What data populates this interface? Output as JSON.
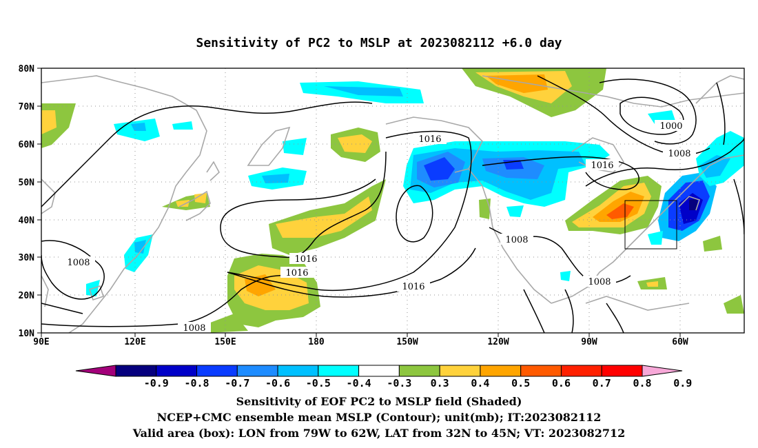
{
  "title": "Sensitivity of PC2 to MSLP at 2023082112 +6.0 day",
  "map": {
    "lat_labels": [
      "80N",
      "70N",
      "60N",
      "50N",
      "40N",
      "30N",
      "20N",
      "10N"
    ],
    "lon_labels": [
      "90E",
      "120E",
      "150E",
      "180",
      "150W",
      "120W",
      "90W",
      "60W"
    ],
    "contour_labels": [
      "1016",
      "1016",
      "1016",
      "1016",
      "1016",
      "1008",
      "1008",
      "1008",
      "1008",
      "1008",
      "1000"
    ],
    "box_label": "valid-area-box"
  },
  "colorbar": {
    "ticks": [
      "-0.9",
      "-0.8",
      "-0.7",
      "-0.6",
      "-0.5",
      "-0.4",
      "-0.3",
      "0.3",
      "0.4",
      "0.5",
      "0.6",
      "0.7",
      "0.8",
      "0.9"
    ],
    "colors": [
      "#a3007a",
      "#06007e",
      "#0000c8",
      "#0a3cff",
      "#1e8cff",
      "#00c0ff",
      "#00ffff",
      "#ffffff",
      "#8dc63f",
      "#ffd23c",
      "#ffa500",
      "#ff5a00",
      "#ff2000",
      "#ff0000",
      "#f7a8d8"
    ]
  },
  "captions": {
    "line1": "Sensitivity of EOF PC2 to MSLP field (Shaded)",
    "line2": "NCEP+CMC ensemble mean MSLP (Contour); unit(mb); IT:2023082112",
    "line3": "Valid area (box): LON from 79W to 62W, LAT from 32N to 45N; VT: 2023082712"
  }
}
